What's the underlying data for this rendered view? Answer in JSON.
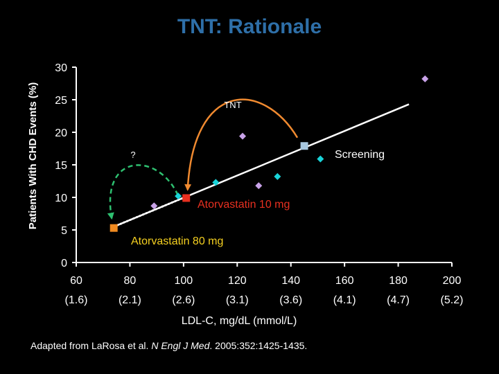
{
  "title": "TNT: Rationale",
  "citation": {
    "prefix": "Adapted from LaRosa et al. ",
    "journal": "N Engl J Med",
    "suffix": ". 2005:352:1425-1435."
  },
  "chart_data": {
    "type": "scatter",
    "ylabel": "Patients With CHD Events (%)",
    "xlabel": "LDL-C, mg/dL (mmol/L)",
    "xlim": [
      60,
      200
    ],
    "ylim": [
      0,
      30
    ],
    "x_ticks": [
      {
        "value": 60,
        "label": "60",
        "sub": "(1.6)"
      },
      {
        "value": 80,
        "label": "80",
        "sub": "(2.1)"
      },
      {
        "value": 100,
        "label": "100",
        "sub": "(2.6)"
      },
      {
        "value": 120,
        "label": "120",
        "sub": "(3.1)"
      },
      {
        "value": 140,
        "label": "140",
        "sub": "(3.6)"
      },
      {
        "value": 160,
        "label": "160",
        "sub": "(4.1)"
      },
      {
        "value": 180,
        "label": "180",
        "sub": "(4.7)"
      },
      {
        "value": 200,
        "label": "200",
        "sub": "(5.2)"
      }
    ],
    "y_ticks": [
      0,
      5,
      10,
      15,
      20,
      25,
      30
    ],
    "grid": false,
    "trend_line": {
      "from": [
        74,
        5.5
      ],
      "to": [
        184,
        24.3
      ]
    },
    "points": [
      {
        "x": 89,
        "y": 8.7,
        "shape": "diamond",
        "color": "#c8a2e8"
      },
      {
        "x": 98,
        "y": 10.2,
        "shape": "diamond",
        "color": "#19d3d8"
      },
      {
        "x": 112,
        "y": 12.3,
        "shape": "diamond",
        "color": "#19d3d8"
      },
      {
        "x": 122,
        "y": 19.4,
        "shape": "diamond",
        "color": "#c8a2e8"
      },
      {
        "x": 128,
        "y": 11.8,
        "shape": "diamond",
        "color": "#c8a2e8"
      },
      {
        "x": 135,
        "y": 13.2,
        "shape": "diamond",
        "color": "#19d3d8"
      },
      {
        "x": 151,
        "y": 15.9,
        "shape": "diamond",
        "color": "#19d3d8"
      },
      {
        "x": 190,
        "y": 28.2,
        "shape": "diamond",
        "color": "#c8a2e8"
      },
      {
        "x": 145,
        "y": 17.9,
        "shape": "square",
        "color": "#a8c8e0",
        "label": "Screening"
      },
      {
        "x": 101,
        "y": 9.9,
        "shape": "square",
        "color": "#e83020",
        "label": "Atorvastatin 10 mg"
      },
      {
        "x": 74,
        "y": 5.3,
        "shape": "square",
        "color": "#f08a20",
        "label": "Atorvastatin 80 mg"
      }
    ],
    "annotations": [
      {
        "text": "TNT",
        "color": "#ffffff"
      },
      {
        "text": "?",
        "color": "#ffffff"
      },
      {
        "text": "Screening",
        "color": "#ffffff"
      },
      {
        "text": "Atorvastatin 10 mg",
        "color": "#e83020"
      },
      {
        "text": "Atorvastatin 80 mg",
        "color": "#f5d020"
      }
    ],
    "arrows": [
      {
        "name": "tnt-arrow",
        "color": "#f08a30",
        "style": "solid"
      },
      {
        "name": "question-arrow",
        "color": "#2ec070",
        "style": "dashed"
      }
    ]
  }
}
